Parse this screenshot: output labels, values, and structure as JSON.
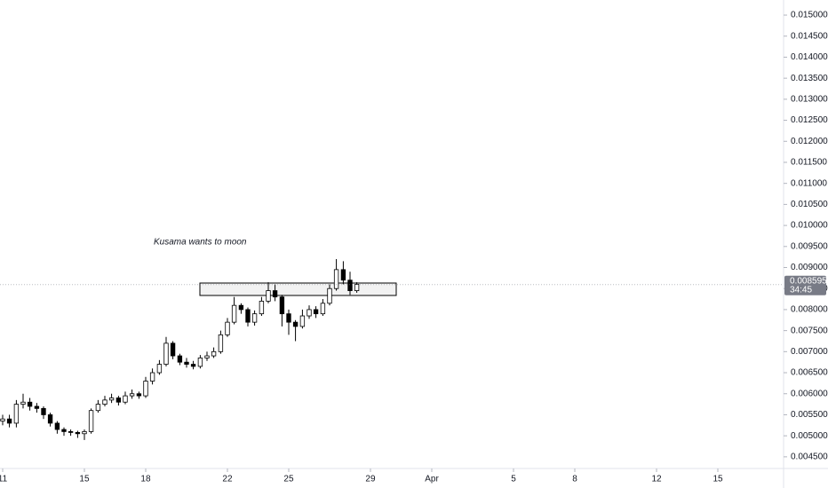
{
  "chart_data": {
    "type": "candlestick",
    "annotation": "Kusama wants to moon",
    "x": [
      11,
      11.33,
      11.67,
      12,
      12.33,
      12.67,
      13,
      13.33,
      13.67,
      14,
      14.33,
      14.67,
      15,
      15.33,
      15.67,
      16,
      16.33,
      16.67,
      17,
      17.33,
      17.67,
      18,
      18.33,
      18.67,
      19,
      19.33,
      19.67,
      20,
      20.33,
      20.67,
      21,
      21.33,
      21.67,
      22,
      22.33,
      22.67,
      23,
      23.33,
      23.67,
      24,
      24.33,
      24.67,
      25,
      25.33,
      25.67,
      26,
      26.33,
      26.67,
      27,
      27.33,
      27.67,
      28,
      28.33
    ],
    "open": [
      0.00535,
      0.0054,
      0.0053,
      0.00575,
      0.0058,
      0.0057,
      0.00565,
      0.0055,
      0.0053,
      0.00515,
      0.0051,
      0.00508,
      0.00505,
      0.0051,
      0.0056,
      0.00575,
      0.00585,
      0.0059,
      0.0058,
      0.00595,
      0.006,
      0.00595,
      0.0063,
      0.0065,
      0.0067,
      0.0072,
      0.0069,
      0.00675,
      0.0067,
      0.00665,
      0.00685,
      0.0069,
      0.007,
      0.0074,
      0.0077,
      0.0081,
      0.008,
      0.0077,
      0.0079,
      0.0082,
      0.00845,
      0.0083,
      0.0079,
      0.0077,
      0.0076,
      0.00785,
      0.008,
      0.0079,
      0.00815,
      0.0085,
      0.00895,
      0.0087,
      0.00845
    ],
    "high": [
      0.0055,
      0.0055,
      0.00585,
      0.006,
      0.0059,
      0.00578,
      0.0057,
      0.00555,
      0.00535,
      0.0052,
      0.00515,
      0.00512,
      0.00515,
      0.00565,
      0.00585,
      0.00595,
      0.006,
      0.00595,
      0.00605,
      0.0061,
      0.00605,
      0.0064,
      0.0066,
      0.0068,
      0.00735,
      0.00725,
      0.00695,
      0.00685,
      0.00678,
      0.00692,
      0.007,
      0.0071,
      0.0075,
      0.0078,
      0.0083,
      0.00815,
      0.00805,
      0.00798,
      0.0083,
      0.00865,
      0.0086,
      0.00835,
      0.008,
      0.00775,
      0.008,
      0.0081,
      0.00808,
      0.00825,
      0.0086,
      0.0092,
      0.00915,
      0.0089,
      0.00865
    ],
    "low": [
      0.00525,
      0.0052,
      0.0052,
      0.00565,
      0.0056,
      0.00555,
      0.0054,
      0.00522,
      0.00505,
      0.005,
      0.005,
      0.00495,
      0.0049,
      0.00505,
      0.00555,
      0.0057,
      0.00578,
      0.00572,
      0.00575,
      0.00588,
      0.00588,
      0.0059,
      0.00622,
      0.00645,
      0.00665,
      0.00682,
      0.00668,
      0.00662,
      0.00658,
      0.0066,
      0.00678,
      0.00685,
      0.00695,
      0.00735,
      0.00765,
      0.0079,
      0.0076,
      0.00762,
      0.00785,
      0.00815,
      0.0082,
      0.0076,
      0.0074,
      0.00725,
      0.00755,
      0.00778,
      0.0078,
      0.00785,
      0.0081,
      0.00845,
      0.0086,
      0.00835,
      0.0084
    ],
    "close": [
      0.0054,
      0.0053,
      0.00575,
      0.0058,
      0.0057,
      0.00565,
      0.0055,
      0.0053,
      0.00515,
      0.0051,
      0.00508,
      0.00505,
      0.0051,
      0.0056,
      0.00575,
      0.00585,
      0.0059,
      0.0058,
      0.00595,
      0.006,
      0.00595,
      0.0063,
      0.0065,
      0.0067,
      0.0072,
      0.0069,
      0.00675,
      0.0067,
      0.00665,
      0.00685,
      0.0069,
      0.007,
      0.0074,
      0.0077,
      0.0081,
      0.008,
      0.0077,
      0.0079,
      0.0082,
      0.00845,
      0.0083,
      0.0079,
      0.0077,
      0.0076,
      0.00785,
      0.008,
      0.0079,
      0.00815,
      0.0085,
      0.00895,
      0.0087,
      0.00845,
      0.0086
    ],
    "up_color": "#ffffff",
    "down_color": "#000000",
    "outline_color": "#000000",
    "last_price": {
      "value": 0.008595,
      "label": "0.008595"
    },
    "countdown": "34:45",
    "xlim": [
      10.87,
      49.13
    ],
    "xticks": [
      11,
      15,
      18,
      22,
      25,
      29,
      {
        "value": 32,
        "label": "Apr"
      },
      {
        "value": 36,
        "label": "5"
      },
      {
        "value": 39,
        "label": "8"
      },
      {
        "value": 43,
        "label": "12"
      },
      {
        "value": 46,
        "label": "15"
      }
    ],
    "ylim": [
      0.004223,
      0.015359
    ],
    "yticks": [
      {
        "value": 0.0045,
        "label": "0.004500"
      },
      {
        "value": 0.005,
        "label": "0.005000"
      },
      {
        "value": 0.0055,
        "label": "0.005500"
      },
      {
        "value": 0.006,
        "label": "0.006000"
      },
      {
        "value": 0.0065,
        "label": "0.006500"
      },
      {
        "value": 0.007,
        "label": "0.007000"
      },
      {
        "value": 0.0075,
        "label": "0.007500"
      },
      {
        "value": 0.008,
        "label": "0.008000"
      },
      {
        "value": 0.0085,
        "label": "0.008500"
      },
      {
        "value": 0.009,
        "label": "0.009000"
      },
      {
        "value": 0.0095,
        "label": "0.009500"
      },
      {
        "value": 0.01,
        "label": "0.010000"
      },
      {
        "value": 0.0105,
        "label": "0.010500"
      },
      {
        "value": 0.011,
        "label": "0.011000"
      },
      {
        "value": 0.0115,
        "label": "0.011500"
      },
      {
        "value": 0.012,
        "label": "0.012000"
      },
      {
        "value": 0.0125,
        "label": "0.012500"
      },
      {
        "value": 0.013,
        "label": "0.013000"
      },
      {
        "value": 0.0135,
        "label": "0.013500"
      },
      {
        "value": 0.014,
        "label": "0.014000"
      },
      {
        "value": 0.0145,
        "label": "0.014500"
      },
      {
        "value": 0.015,
        "label": "0.015000"
      }
    ]
  }
}
